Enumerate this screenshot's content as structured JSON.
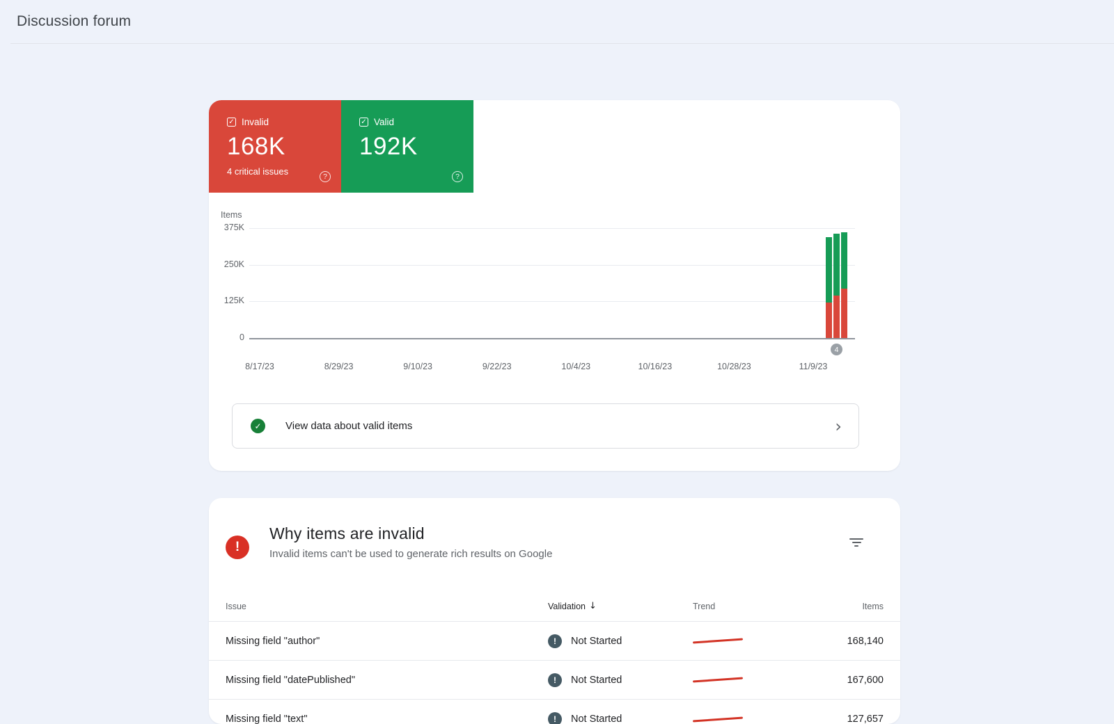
{
  "header": {
    "title": "Discussion forum"
  },
  "icons": {
    "checkbox_check": "✓",
    "help": "?",
    "valid_check": "✓",
    "chevron_right": "›",
    "alert_exclamation": "!",
    "validation_exclamation": "!",
    "sort_desc_arrow": "↓"
  },
  "summary": {
    "invalid": {
      "label": "Invalid",
      "value": "168K",
      "subtitle": "4 critical issues",
      "color": "#d9473a"
    },
    "valid": {
      "label": "Valid",
      "value": "192K",
      "color": "#169c56"
    }
  },
  "chart_data": {
    "type": "bar",
    "stacked": true,
    "ylabel": "Items",
    "ylim": [
      0,
      375000
    ],
    "yticks": [
      "375K",
      "250K",
      "125K",
      "0"
    ],
    "xticks": [
      "8/17/23",
      "8/29/23",
      "9/10/23",
      "9/22/23",
      "10/4/23",
      "10/16/23",
      "10/28/23",
      "11/9/23"
    ],
    "grid": true,
    "legend_position": "none",
    "series": [
      {
        "name": "Invalid",
        "color": "#d9473a",
        "values": [
          120000,
          146000,
          168000
        ]
      },
      {
        "name": "Valid",
        "color": "#169c56",
        "values": [
          225000,
          209000,
          192000
        ]
      }
    ],
    "note_badge": "4"
  },
  "view_valid": {
    "label": "View data about valid items"
  },
  "invalid_section": {
    "title": "Why items are invalid",
    "subtitle": "Invalid items can't be used to generate rich results on Google",
    "table": {
      "columns": [
        "Issue",
        "Validation",
        "Trend",
        "Items"
      ],
      "sort_column": "Validation",
      "rows": [
        {
          "issue": "Missing field \"author\"",
          "validation": "Not Started",
          "items": "168,140"
        },
        {
          "issue": "Missing field \"datePublished\"",
          "validation": "Not Started",
          "items": "167,600"
        },
        {
          "issue": "Missing field \"text\"",
          "validation": "Not Started",
          "items": "127,657"
        }
      ]
    }
  }
}
